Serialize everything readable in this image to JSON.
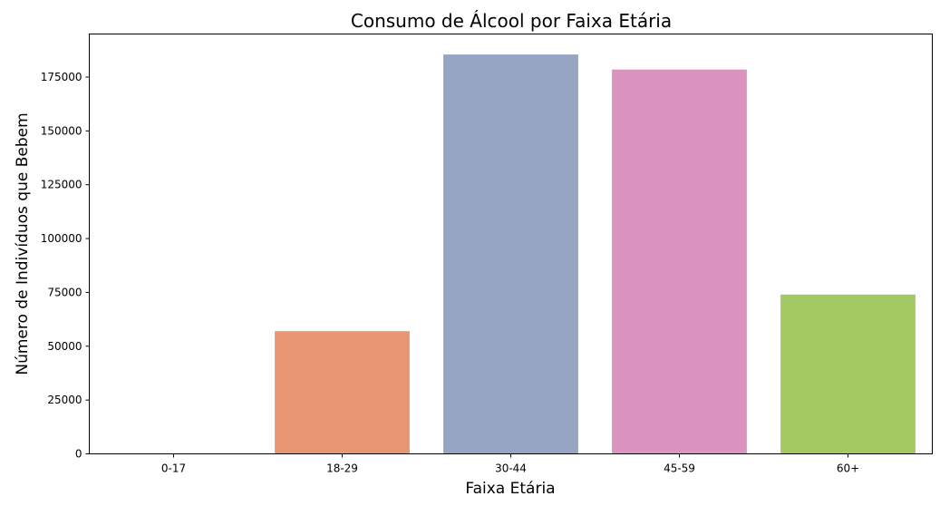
{
  "chart_data": {
    "type": "bar",
    "title": "Consumo de Álcool por Faixa Etária",
    "xlabel": "Faixa Etária",
    "ylabel": "Número de Indivíduos que Bebem",
    "categories": [
      "0-17",
      "18-29",
      "30-44",
      "45-59",
      "60+"
    ],
    "values": [
      0,
      57000,
      185500,
      178500,
      74000
    ],
    "colors": [
      "#66c2a5",
      "#e89572",
      "#95a5c3",
      "#db94bf",
      "#a2c962"
    ],
    "yticks": [
      0,
      25000,
      50000,
      75000,
      100000,
      125000,
      150000,
      175000
    ],
    "ylim": [
      0,
      195000
    ],
    "grid": false,
    "legend": "none"
  }
}
